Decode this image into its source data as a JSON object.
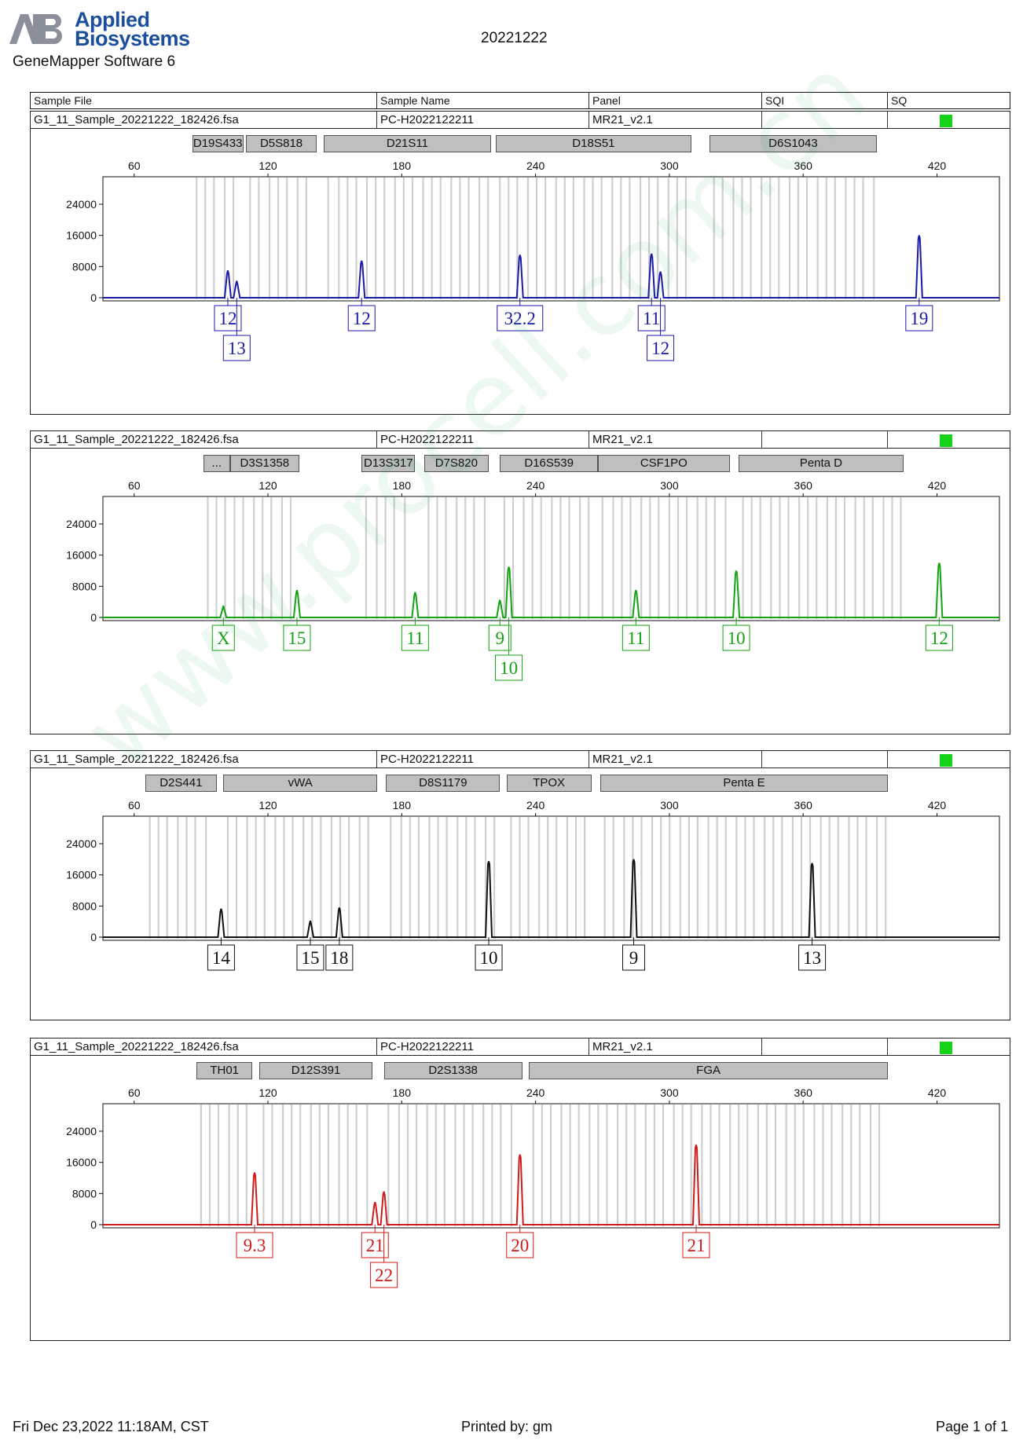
{
  "header": {
    "logo_line1": "Applied",
    "logo_line2": "Biosystems",
    "software": "GeneMapper Software 6",
    "title": "20221222"
  },
  "columns": [
    "Sample File",
    "Sample Name",
    "Panel",
    "SQI",
    "SQ"
  ],
  "axis": {
    "x_ticks": [
      60,
      120,
      180,
      240,
      300,
      360,
      420
    ],
    "y_ticks": [
      0,
      8000,
      16000,
      24000
    ]
  },
  "panels": [
    {
      "sample_file": "G1_11_Sample_20221222_182426.fsa",
      "sample_name": "PC-H2022122211",
      "panel": "MR21_v2.1",
      "sqi": "",
      "sq_color": "#17d317",
      "color": "#1a1aa8",
      "markers": [
        {
          "name": "D19S433",
          "start": 86,
          "end": 109
        },
        {
          "name": "D5S818",
          "start": 110,
          "end": 142
        },
        {
          "name": "D21S11",
          "start": 145,
          "end": 220
        },
        {
          "name": "D18S51",
          "start": 222,
          "end": 310
        },
        {
          "name": "D6S1043",
          "start": 318,
          "end": 393
        }
      ],
      "peaks": [
        {
          "size": 102,
          "height": 7000,
          "allele": "12",
          "row": 0
        },
        {
          "size": 106,
          "height": 4300,
          "allele": "13",
          "row": 1
        },
        {
          "size": 162,
          "height": 9500,
          "allele": "12",
          "row": 0
        },
        {
          "size": 233,
          "height": 11000,
          "allele": "32.2",
          "row": 0
        },
        {
          "size": 292,
          "height": 11300,
          "allele": "11",
          "row": 0
        },
        {
          "size": 296,
          "height": 6700,
          "allele": "12",
          "row": 1
        },
        {
          "size": 412,
          "height": 16000,
          "allele": "19",
          "row": 0
        }
      ]
    },
    {
      "sample_file": "G1_11_Sample_20221222_182426.fsa",
      "sample_name": "PC-H2022122211",
      "panel": "MR21_v2.1",
      "sqi": "",
      "sq_color": "#17d317",
      "color": "#13a313",
      "markers": [
        {
          "name": "...",
          "start": 91,
          "end": 103
        },
        {
          "name": "D3S1358",
          "start": 103,
          "end": 134
        },
        {
          "name": "D13S317",
          "start": 162,
          "end": 186
        },
        {
          "name": "D7S820",
          "start": 190,
          "end": 219
        },
        {
          "name": "D16S539",
          "start": 224,
          "end": 268
        },
        {
          "name": "CSF1PO",
          "start": 268,
          "end": 327
        },
        {
          "name": "Penta D",
          "start": 331,
          "end": 405
        }
      ],
      "peaks": [
        {
          "size": 100,
          "height": 3000,
          "allele": "X",
          "row": 0
        },
        {
          "size": 133,
          "height": 7000,
          "allele": "15",
          "row": 0
        },
        {
          "size": 186,
          "height": 6500,
          "allele": "11",
          "row": 0
        },
        {
          "size": 224,
          "height": 4500,
          "allele": "9",
          "row": 0
        },
        {
          "size": 228,
          "height": 13000,
          "allele": "10",
          "row": 1
        },
        {
          "size": 285,
          "height": 7000,
          "allele": "11",
          "row": 0
        },
        {
          "size": 330,
          "height": 12000,
          "allele": "10",
          "row": 0
        },
        {
          "size": 421,
          "height": 14000,
          "allele": "12",
          "row": 0
        }
      ]
    },
    {
      "sample_file": "G1_11_Sample_20221222_182426.fsa",
      "sample_name": "PC-H2022122211",
      "panel": "MR21_v2.1",
      "sqi": "",
      "sq_color": "#17d317",
      "color": "#111111",
      "markers": [
        {
          "name": "D2S441",
          "start": 65,
          "end": 97
        },
        {
          "name": "vWA",
          "start": 100,
          "end": 169
        },
        {
          "name": "D8S1179",
          "start": 173,
          "end": 224
        },
        {
          "name": "TPOX",
          "start": 227,
          "end": 265
        },
        {
          "name": "Penta E",
          "start": 269,
          "end": 398
        }
      ],
      "peaks": [
        {
          "size": 99,
          "height": 7300,
          "allele": "14",
          "row": 0
        },
        {
          "size": 139,
          "height": 4200,
          "allele": "15",
          "row": 0
        },
        {
          "size": 152,
          "height": 7600,
          "allele": "18",
          "row": 0
        },
        {
          "size": 219,
          "height": 19500,
          "allele": "10",
          "row": 0
        },
        {
          "size": 284,
          "height": 20000,
          "allele": "9",
          "row": 0
        },
        {
          "size": 364,
          "height": 19000,
          "allele": "13",
          "row": 0
        }
      ]
    },
    {
      "sample_file": "G1_11_Sample_20221222_182426.fsa",
      "sample_name": "PC-H2022122211",
      "panel": "MR21_v2.1",
      "sqi": "",
      "sq_color": "#17d317",
      "color": "#d11a1a",
      "markers": [
        {
          "name": "TH01",
          "start": 88,
          "end": 113
        },
        {
          "name": "D12S391",
          "start": 116,
          "end": 167
        },
        {
          "name": "D2S1338",
          "start": 172,
          "end": 234
        },
        {
          "name": "FGA",
          "start": 237,
          "end": 398
        }
      ],
      "peaks": [
        {
          "size": 114,
          "height": 13400,
          "allele": "9.3",
          "row": 0
        },
        {
          "size": 168,
          "height": 5800,
          "allele": "21",
          "row": 0
        },
        {
          "size": 172,
          "height": 8500,
          "allele": "22",
          "row": 1
        },
        {
          "size": 233,
          "height": 18000,
          "allele": "20",
          "row": 0
        },
        {
          "size": 312,
          "height": 20500,
          "allele": "21",
          "row": 0
        }
      ]
    }
  ],
  "footer": {
    "date": "Fri Dec 23,2022 11:18AM, CST",
    "printed_by": "Printed by: gm",
    "page": "Page 1 of 1"
  },
  "watermark": "www.procell.com.cn"
}
